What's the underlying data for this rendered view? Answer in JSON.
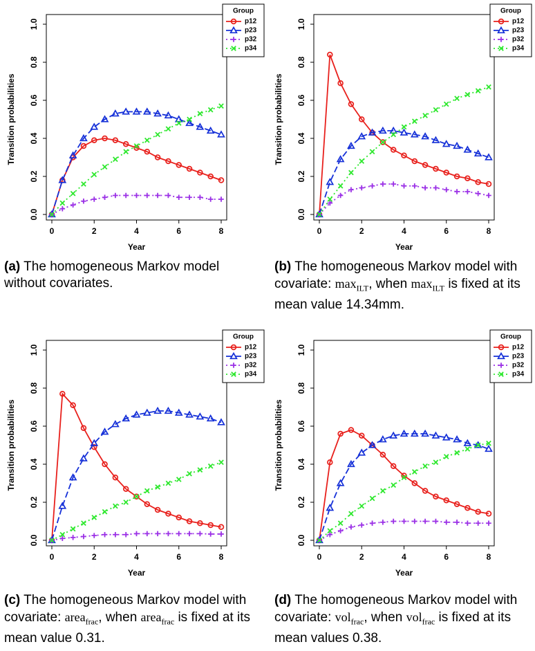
{
  "colors": {
    "p12": "#e8201c",
    "p23": "#1530d8",
    "p32": "#9b30e6",
    "p34": "#2ee82e"
  },
  "chart_data": [
    {
      "type": "line",
      "xlabel": "Year",
      "ylabel": "Transition probabilities",
      "xlim": [
        0,
        8
      ],
      "ylim": [
        0,
        1
      ],
      "xticks": [
        "0",
        "2",
        "4",
        "6",
        "8"
      ],
      "yticks": [
        "0.0",
        "0.2",
        "0.4",
        "0.6",
        "0.8",
        "1.0"
      ],
      "legend_title": "Group",
      "legend_position": "top-right",
      "x": [
        0,
        0.5,
        1,
        1.5,
        2,
        2.5,
        3,
        3.5,
        4,
        4.5,
        5,
        5.5,
        6,
        6.5,
        7,
        7.5,
        8
      ],
      "series": [
        {
          "name": "p12",
          "values": [
            0,
            0.18,
            0.3,
            0.36,
            0.39,
            0.4,
            0.39,
            0.37,
            0.35,
            0.33,
            0.3,
            0.28,
            0.26,
            0.24,
            0.22,
            0.2,
            0.18
          ]
        },
        {
          "name": "p23",
          "values": [
            0,
            0.18,
            0.31,
            0.4,
            0.46,
            0.5,
            0.53,
            0.54,
            0.54,
            0.54,
            0.53,
            0.52,
            0.5,
            0.48,
            0.46,
            0.44,
            0.42
          ]
        },
        {
          "name": "p32",
          "values": [
            0,
            0.03,
            0.05,
            0.07,
            0.08,
            0.09,
            0.1,
            0.1,
            0.1,
            0.1,
            0.1,
            0.1,
            0.09,
            0.09,
            0.09,
            0.08,
            0.08
          ]
        },
        {
          "name": "p34",
          "values": [
            0,
            0.06,
            0.11,
            0.16,
            0.21,
            0.25,
            0.29,
            0.33,
            0.36,
            0.39,
            0.42,
            0.45,
            0.48,
            0.5,
            0.53,
            0.55,
            0.57
          ]
        }
      ]
    },
    {
      "type": "line",
      "xlabel": "Year",
      "ylabel": "Transition probabilities",
      "xlim": [
        0,
        8
      ],
      "ylim": [
        0,
        1
      ],
      "xticks": [
        "0",
        "2",
        "4",
        "6",
        "8"
      ],
      "yticks": [
        "0.0",
        "0.2",
        "0.4",
        "0.6",
        "0.8",
        "1.0"
      ],
      "legend_title": "Group",
      "legend_position": "top-right",
      "x": [
        0,
        0.5,
        1,
        1.5,
        2,
        2.5,
        3,
        3.5,
        4,
        4.5,
        5,
        5.5,
        6,
        6.5,
        7,
        7.5,
        8
      ],
      "series": [
        {
          "name": "p12",
          "values": [
            0,
            0.84,
            0.69,
            0.58,
            0.5,
            0.43,
            0.38,
            0.34,
            0.31,
            0.28,
            0.26,
            0.24,
            0.22,
            0.2,
            0.19,
            0.17,
            0.16
          ]
        },
        {
          "name": "p23",
          "values": [
            0,
            0.17,
            0.29,
            0.36,
            0.41,
            0.43,
            0.44,
            0.44,
            0.43,
            0.42,
            0.41,
            0.39,
            0.37,
            0.36,
            0.34,
            0.32,
            0.3
          ]
        },
        {
          "name": "p32",
          "values": [
            0,
            0.06,
            0.1,
            0.13,
            0.14,
            0.15,
            0.16,
            0.16,
            0.15,
            0.15,
            0.14,
            0.14,
            0.13,
            0.12,
            0.12,
            0.11,
            0.1
          ]
        },
        {
          "name": "p34",
          "values": [
            0,
            0.08,
            0.15,
            0.22,
            0.28,
            0.33,
            0.38,
            0.42,
            0.46,
            0.49,
            0.52,
            0.55,
            0.58,
            0.61,
            0.63,
            0.65,
            0.67
          ]
        }
      ]
    },
    {
      "type": "line",
      "xlabel": "Year",
      "ylabel": "Transition probabilities",
      "xlim": [
        0,
        8
      ],
      "ylim": [
        0,
        1
      ],
      "xticks": [
        "0",
        "2",
        "4",
        "6",
        "8"
      ],
      "yticks": [
        "0.0",
        "0.2",
        "0.4",
        "0.6",
        "0.8",
        "1.0"
      ],
      "legend_title": "Group",
      "legend_position": "top-right",
      "x": [
        0,
        0.5,
        1,
        1.5,
        2,
        2.5,
        3,
        3.5,
        4,
        4.5,
        5,
        5.5,
        6,
        6.5,
        7,
        7.5,
        8
      ],
      "series": [
        {
          "name": "p12",
          "values": [
            0,
            0.77,
            0.71,
            0.59,
            0.49,
            0.4,
            0.33,
            0.27,
            0.23,
            0.19,
            0.16,
            0.14,
            0.12,
            0.1,
            0.09,
            0.08,
            0.07
          ]
        },
        {
          "name": "p23",
          "values": [
            0,
            0.18,
            0.33,
            0.43,
            0.51,
            0.57,
            0.61,
            0.64,
            0.66,
            0.67,
            0.68,
            0.68,
            0.67,
            0.66,
            0.65,
            0.64,
            0.62
          ]
        },
        {
          "name": "p32",
          "values": [
            0,
            0.01,
            0.015,
            0.02,
            0.025,
            0.03,
            0.03,
            0.03,
            0.035,
            0.035,
            0.035,
            0.035,
            0.035,
            0.035,
            0.035,
            0.033,
            0.033
          ]
        },
        {
          "name": "p34",
          "values": [
            0,
            0.03,
            0.06,
            0.09,
            0.12,
            0.15,
            0.18,
            0.2,
            0.23,
            0.26,
            0.28,
            0.3,
            0.32,
            0.35,
            0.37,
            0.39,
            0.41
          ]
        }
      ]
    },
    {
      "type": "line",
      "xlabel": "Year",
      "ylabel": "Transition probabilities",
      "xlim": [
        0,
        8
      ],
      "ylim": [
        0,
        1
      ],
      "xticks": [
        "0",
        "2",
        "4",
        "6",
        "8"
      ],
      "yticks": [
        "0.0",
        "0.2",
        "0.4",
        "0.6",
        "0.8",
        "1.0"
      ],
      "legend_title": "Group",
      "legend_position": "top-right",
      "x": [
        0,
        0.5,
        1,
        1.5,
        2,
        2.5,
        3,
        3.5,
        4,
        4.5,
        5,
        5.5,
        6,
        6.5,
        7,
        7.5,
        8
      ],
      "series": [
        {
          "name": "p12",
          "values": [
            0,
            0.41,
            0.56,
            0.58,
            0.55,
            0.5,
            0.45,
            0.39,
            0.34,
            0.3,
            0.26,
            0.23,
            0.21,
            0.19,
            0.17,
            0.15,
            0.14
          ]
        },
        {
          "name": "p23",
          "values": [
            0,
            0.17,
            0.3,
            0.4,
            0.46,
            0.5,
            0.53,
            0.55,
            0.56,
            0.56,
            0.56,
            0.55,
            0.54,
            0.53,
            0.51,
            0.5,
            0.48
          ]
        },
        {
          "name": "p32",
          "values": [
            0,
            0.03,
            0.05,
            0.07,
            0.08,
            0.09,
            0.095,
            0.1,
            0.1,
            0.1,
            0.1,
            0.1,
            0.095,
            0.095,
            0.09,
            0.09,
            0.09
          ]
        },
        {
          "name": "p34",
          "values": [
            0,
            0.05,
            0.09,
            0.14,
            0.18,
            0.22,
            0.26,
            0.29,
            0.33,
            0.36,
            0.39,
            0.41,
            0.44,
            0.46,
            0.48,
            0.5,
            0.51
          ]
        }
      ]
    }
  ],
  "captions": [
    {
      "label": "(a)",
      "text": "The homogeneous Markov model without covariates."
    },
    {
      "label": "(b)",
      "pre": "The homogeneous Markov model with covariate:",
      "cov": "max",
      "sub": "ILT",
      "mid": ", when",
      "tail": "is fixed at its mean value 14.34mm."
    },
    {
      "label": "(c)",
      "pre": "The homogeneous Markov model with covariate:",
      "cov": "area",
      "sub": "frac",
      "mid": ", when",
      "tail": "is fixed at its mean value 0.31."
    },
    {
      "label": "(d)",
      "pre": "The homogeneous Markov model with covariate:",
      "cov": "vol",
      "sub": "frac",
      "mid": ", when",
      "tail": "is fixed at its mean values 0.38."
    }
  ]
}
